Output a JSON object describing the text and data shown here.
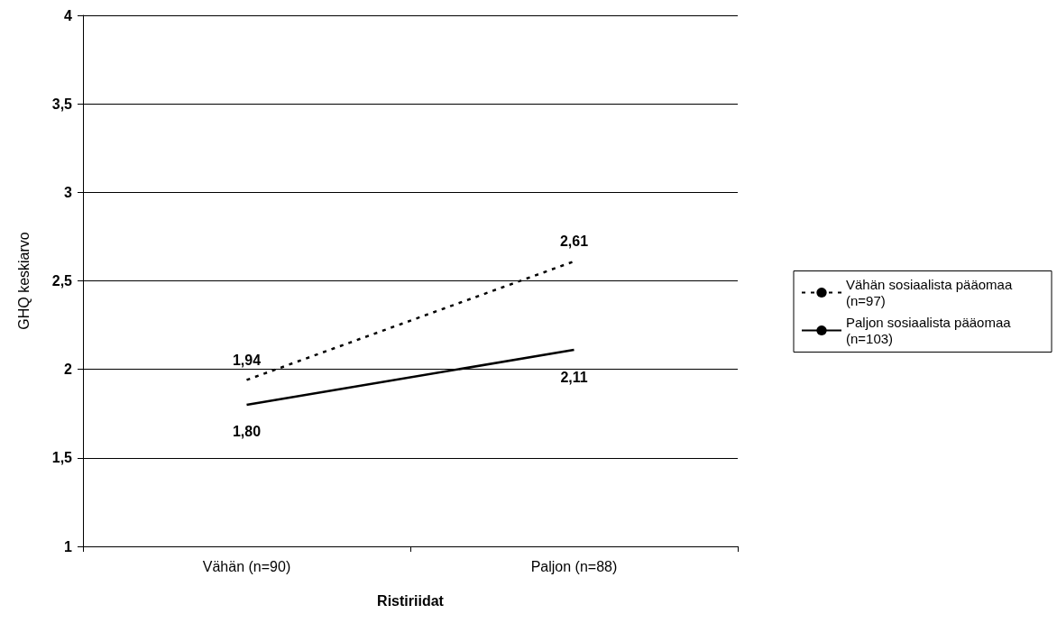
{
  "chart_data": {
    "type": "line",
    "xlabel": "Ristiriidat",
    "ylabel": "GHQ keskiarvo",
    "categories": [
      "Vähän (n=90)",
      "Paljon (n=88)"
    ],
    "series": [
      {
        "name": "Vähän sosiaalista pääomaa (n=97)",
        "color": "#000000",
        "line_style": "dashed",
        "values": [
          1.94,
          2.61
        ],
        "value_labels": [
          "1,94",
          "2,61"
        ]
      },
      {
        "name": "Paljon sosiaalista pääomaa (n=103)",
        "color": "#000000",
        "line_style": "solid",
        "values": [
          1.8,
          2.11
        ],
        "value_labels": [
          "1,80",
          "2,11"
        ]
      }
    ],
    "ylim": [
      1,
      4
    ],
    "yticks": [
      1,
      {
        "value": 1.5,
        "label": "1,5"
      },
      2,
      {
        "value": 2.5,
        "label": "2,5"
      },
      3,
      {
        "value": 3.5,
        "label": "3,5"
      },
      4
    ],
    "grid": "y",
    "legend": "right",
    "marker": "none"
  }
}
